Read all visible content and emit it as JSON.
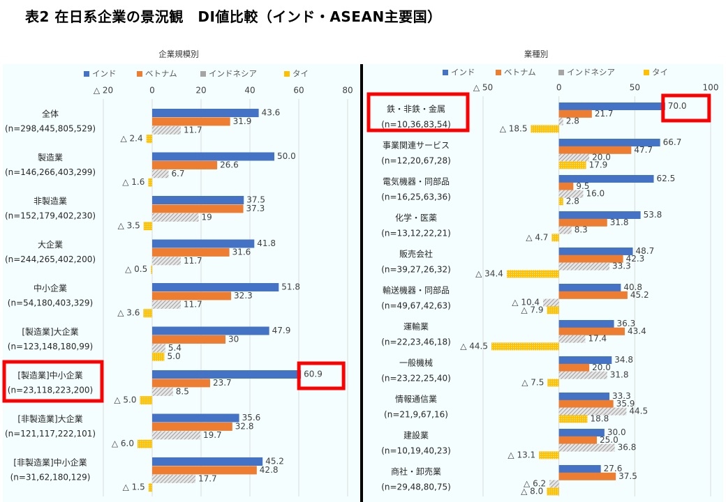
{
  "title": "表2 在日系企業の景況観　DI値比較（インド・ASEAN主要国）",
  "colors": {
    "india": "#4472c4",
    "vietnam": "#ed7d31",
    "indonesia": "#a5a5a5",
    "thailand": "#ffc000",
    "highlight": "#ff0000",
    "panel_bg": "#f5feff"
  },
  "legend": [
    "インド",
    "ベトナム",
    "インドネシア",
    "タイ"
  ],
  "chart_data": [
    {
      "type": "bar",
      "orientation": "horizontal",
      "title": "企業規模別",
      "xlim": [
        -20,
        80
      ],
      "ticks": [
        -20,
        0,
        20,
        40,
        60,
        80
      ],
      "tick_labels": [
        "△ 20",
        "0",
        "20",
        "40",
        "60",
        "80"
      ],
      "legend_position": "top",
      "categories": [
        {
          "name": "全体",
          "n": "(n=298,445,805,529)"
        },
        {
          "name": "製造業",
          "n": "(n=146,266,403,299)"
        },
        {
          "name": "非製造業",
          "n": "(n=152,179,402,230)"
        },
        {
          "name": "大企業",
          "n": "(n=244,265,402,200)"
        },
        {
          "name": "中小企業",
          "n": "(n=54,180,403,329)"
        },
        {
          "name": "[製造業]大企業",
          "n": "(n=123,148,180,99)"
        },
        {
          "name": "[製造業]中小企業",
          "n": "(n=23,118,223,200)"
        },
        {
          "name": "[非製造業]大企業",
          "n": "(n=121,117,222,101)"
        },
        {
          "name": "[非製造業]中小企業",
          "n": "(n=31,62,180,129)"
        }
      ],
      "series": [
        {
          "name": "インド",
          "values": [
            43.6,
            50.0,
            37.5,
            41.8,
            51.8,
            47.9,
            60.9,
            35.6,
            45.2
          ],
          "labels": [
            "43.6",
            "50.0",
            "37.5",
            "41.8",
            "51.8",
            "47.9",
            "60.9",
            "35.6",
            "45.2"
          ]
        },
        {
          "name": "ベトナム",
          "values": [
            31.9,
            26.6,
            37.3,
            31.6,
            32.3,
            30,
            23.7,
            32.8,
            42.8
          ],
          "labels": [
            "31.9",
            "26.6",
            "37.3",
            "31.6",
            "32.3",
            "30",
            "23.7",
            "32.8",
            "42.8"
          ]
        },
        {
          "name": "インドネシア",
          "values": [
            11.7,
            6.7,
            19,
            11.7,
            11.7,
            5.4,
            8.5,
            19.7,
            17.7
          ],
          "labels": [
            "11.7",
            "6.7",
            "19",
            "11.7",
            "11.7",
            "5.4",
            "8.5",
            "19.7",
            "17.7"
          ]
        },
        {
          "name": "タイ",
          "values": [
            -2.4,
            -1.6,
            -3.5,
            -0.5,
            -3.6,
            5.0,
            -5.0,
            -6.0,
            -1.5
          ],
          "labels": [
            "△ 2.4",
            "△ 1.6",
            "△ 3.5",
            "△ 0.5",
            "△ 3.6",
            "5.0",
            "△ 5.0",
            "△ 6.0",
            "△ 1.5"
          ]
        }
      ],
      "highlights": {
        "category_index": 6,
        "value_series": 0
      }
    },
    {
      "type": "bar",
      "orientation": "horizontal",
      "title": "業種別",
      "xlim": [
        -50,
        100
      ],
      "ticks": [
        -50,
        0,
        50,
        100
      ],
      "tick_labels": [
        "△ 50",
        "0",
        "50",
        "100"
      ],
      "legend_position": "top",
      "categories": [
        {
          "name": "鉄・非鉄・金属",
          "n": "(n=10,36,83,54)"
        },
        {
          "name": "事業関連サービス",
          "n": "(n=12,20,67,28)"
        },
        {
          "name": "電気機器・同部品",
          "n": "(n=16,25,63,36)"
        },
        {
          "name": "化学・医薬",
          "n": "(n=13,12,22,21)"
        },
        {
          "name": "販売会社",
          "n": "(n=39,27,26,32)"
        },
        {
          "name": "輸送機器・同部品",
          "n": "(n=49,67,42,63)"
        },
        {
          "name": "運輸業",
          "n": "(n=22,23,46,18)"
        },
        {
          "name": "一般機械",
          "n": "(n=23,22,25,40)"
        },
        {
          "name": "情報通信業",
          "n": "(n=21,9,67,16)"
        },
        {
          "name": "建設業",
          "n": "(n=10,19,40,23)"
        },
        {
          "name": "商社・卸売業",
          "n": "(n=29,48,80,75)"
        }
      ],
      "series": [
        {
          "name": "インド",
          "values": [
            70.0,
            66.7,
            62.5,
            53.8,
            48.7,
            40.8,
            36.3,
            34.8,
            33.3,
            30.0,
            27.6
          ],
          "labels": [
            "70.0",
            "66.7",
            "62.5",
            "53.8",
            "48.7",
            "40.8",
            "36.3",
            "34.8",
            "33.3",
            "30.0",
            "27.6"
          ]
        },
        {
          "name": "ベトナム",
          "values": [
            21.7,
            47.7,
            9.5,
            31.8,
            42.3,
            45.2,
            43.4,
            20.0,
            35.9,
            25.0,
            37.5
          ],
          "labels": [
            "21.7",
            "47.7",
            "9.5",
            "31.8",
            "42.3",
            "45.2",
            "43.4",
            "20.0",
            "35.9",
            "25.0",
            "37.5"
          ]
        },
        {
          "name": "インドネシア",
          "values": [
            2.8,
            20.0,
            16.0,
            8.3,
            33.3,
            -10.4,
            17.4,
            31.8,
            44.5,
            36.8,
            -6.2
          ],
          "labels": [
            "2.8",
            "20.0",
            "16.0",
            "8.3",
            "33.3",
            "△ 10.4",
            "17.4",
            "31.8",
            "44.5",
            "36.8",
            "△ 6.2"
          ]
        },
        {
          "name": "タイ",
          "values": [
            -18.5,
            17.9,
            2.8,
            -4.7,
            -34.4,
            -7.9,
            -44.5,
            -7.5,
            18.8,
            -13.1,
            -8.0
          ],
          "labels": [
            "△ 18.5",
            "17.9",
            "2.8",
            "△ 4.7",
            "△ 34.4",
            "△ 7.9",
            "△ 44.5",
            "△ 7.5",
            "18.8",
            "△ 13.1",
            "△ 8.0"
          ]
        }
      ],
      "highlights": {
        "category_index": 0,
        "value_series": 0
      }
    }
  ]
}
